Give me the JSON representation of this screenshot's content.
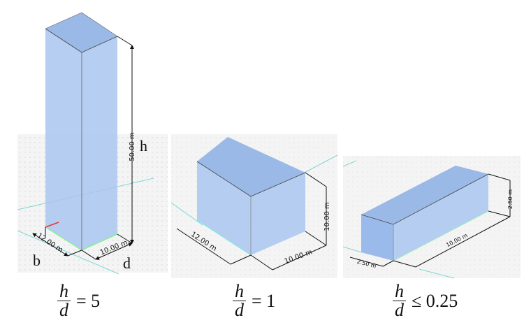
{
  "panels": [
    {
      "height_dim": "50.00 m",
      "width_dim": "12.00 m",
      "depth_dim": "10.00 m",
      "h_symbol": "h",
      "b_symbol": "b",
      "d_symbol": "d"
    },
    {
      "height_dim": "10.00 m",
      "width_dim": "12.00 m",
      "depth_dim": "10.00 m"
    },
    {
      "height_dim": "2.50 m",
      "width_dim": "2.50 m",
      "depth_dim": "10.00 m"
    }
  ],
  "formulas": [
    {
      "numerator": "h",
      "denominator": "d",
      "relation": "= 5"
    },
    {
      "numerator": "h",
      "denominator": "d",
      "relation": "= 1"
    },
    {
      "numerator": "h",
      "denominator": "d",
      "relation": "≤ 0.25"
    }
  ],
  "colors": {
    "box_fill": "#a9c6ef",
    "grid_bg": "#f3f3f3",
    "axis_line": "#7fd6d6"
  }
}
